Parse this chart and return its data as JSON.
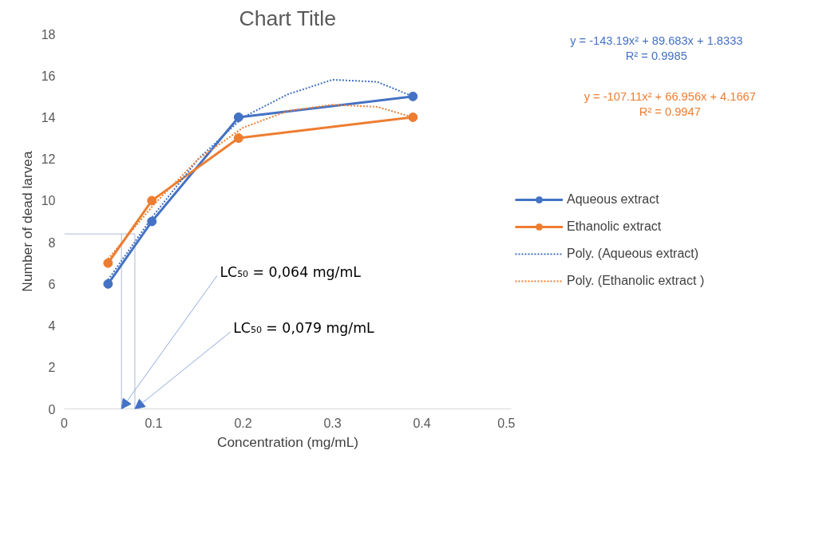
{
  "chart_data": {
    "type": "line",
    "title": "Chart Title",
    "xlabel": "Concentration (mg/mL)",
    "ylabel": "Number of dead larvea",
    "xlim": [
      0,
      0.5
    ],
    "xticks": [
      0,
      0.1,
      0.2,
      0.3,
      0.4,
      0.5
    ],
    "ylim": [
      0,
      18
    ],
    "yticks": [
      0,
      2,
      4,
      6,
      8,
      10,
      12,
      14,
      16,
      18
    ],
    "grid": false,
    "legend": "right",
    "marker": "circle",
    "series": [
      {
        "name": "Aqueous extract",
        "color": "#4472c4",
        "x": [
          0.049,
          0.098,
          0.195,
          0.39
        ],
        "values": [
          6,
          9,
          14,
          15
        ]
      },
      {
        "name": "Ethanolic extract",
        "color": "#ed7d31",
        "x": [
          0.049,
          0.098,
          0.195,
          0.39
        ],
        "values": [
          7,
          10,
          13,
          14
        ]
      },
      {
        "name": "Poly. (Aqueous extract)",
        "color": "#4472c4",
        "marker": "none",
        "line_style": "dotted",
        "x": [
          0.049,
          0.1,
          0.15,
          0.2,
          0.25,
          0.3,
          0.35,
          0.39
        ],
        "values": [
          6.2,
          9.3,
          12.0,
          14.0,
          15.1,
          15.8,
          15.7,
          15.0
        ]
      },
      {
        "name": "Poly. (Ethanolic extract )",
        "color": "#ed7d31",
        "marker": "none",
        "line_style": "dotted",
        "x": [
          0.049,
          0.1,
          0.15,
          0.2,
          0.25,
          0.3,
          0.35,
          0.39
        ],
        "values": [
          7.2,
          9.8,
          12.0,
          13.5,
          14.3,
          14.6,
          14.5,
          14.0
        ]
      }
    ],
    "ref_lines": [
      {
        "axis": "y",
        "value": 8.4,
        "color": "#a9bcd6"
      },
      {
        "axis": "x",
        "value": 0.064,
        "color": "#a9bcd6"
      },
      {
        "axis": "x",
        "value": 0.079,
        "color": "#a9bcd6"
      }
    ],
    "annotations": [
      {
        "text": "LC₅₀ = 0,064 mg/mL",
        "x": 0.064,
        "y": 0
      },
      {
        "text": "LC₅₀ = 0,079 mg/mL",
        "x": 0.079,
        "y": 0
      },
      "y = -143.19x² + 89.683x + 1.8333\nR² = 0.9985",
      "y = -107.11x² + 66.956x + 4.1667\nR² = 0.9947"
    ]
  }
}
